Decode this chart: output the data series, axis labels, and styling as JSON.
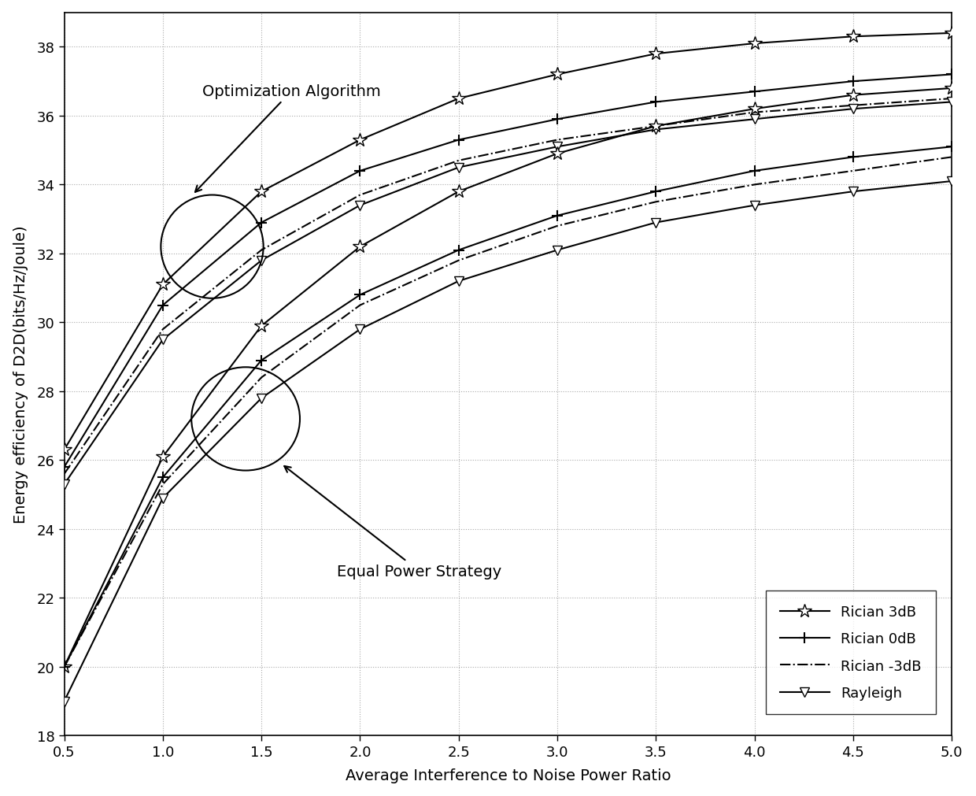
{
  "x": [
    0.5,
    1.0,
    1.5,
    2.0,
    2.5,
    3.0,
    3.5,
    4.0,
    4.5,
    5.0
  ],
  "rician_3dB_opt": [
    26.3,
    31.1,
    33.8,
    35.3,
    36.5,
    37.2,
    37.8,
    38.1,
    38.3,
    38.4
  ],
  "rician_0dB_opt": [
    25.8,
    30.5,
    32.9,
    34.4,
    35.3,
    35.9,
    36.4,
    36.7,
    37.0,
    37.2
  ],
  "rician_m3dB_opt": [
    25.6,
    29.8,
    32.1,
    33.7,
    34.7,
    35.3,
    35.7,
    36.1,
    36.3,
    36.5
  ],
  "rayleigh_opt": [
    25.3,
    29.5,
    31.8,
    33.4,
    34.5,
    35.1,
    35.6,
    35.9,
    36.2,
    36.4
  ],
  "rician_3dB_eq": [
    20.0,
    26.1,
    29.9,
    32.2,
    33.8,
    34.9,
    35.7,
    36.2,
    36.6,
    36.8
  ],
  "rician_0dB_eq": [
    20.0,
    25.5,
    28.9,
    30.8,
    32.1,
    33.1,
    33.8,
    34.4,
    34.8,
    35.1
  ],
  "rician_m3dB_eq": [
    20.0,
    25.3,
    28.4,
    30.5,
    31.8,
    32.8,
    33.5,
    34.0,
    34.4,
    34.8
  ],
  "rayleigh_eq": [
    19.0,
    24.9,
    27.8,
    29.8,
    31.2,
    32.1,
    32.9,
    33.4,
    33.8,
    34.1
  ],
  "xlabel": "Average Interference to Noise Power Ratio",
  "ylabel": "Energy efficiency of D2D(bits/Hz/Joule)",
  "xlim": [
    0.5,
    5.0
  ],
  "ylim": [
    18,
    39
  ],
  "xticks": [
    0.5,
    1.0,
    1.5,
    2.0,
    2.5,
    3.0,
    3.5,
    4.0,
    4.5,
    5.0
  ],
  "yticks": [
    18,
    20,
    22,
    24,
    26,
    28,
    30,
    32,
    34,
    36,
    38
  ],
  "legend_labels": [
    "Rician 3dB",
    "Rician 0dB",
    "Rician -3dB",
    "Rayleigh"
  ],
  "annotation_opt": "Optimization Algorithm",
  "annotation_eq": "Equal Power Strategy",
  "line_color": "#000000",
  "background_color": "#ffffff",
  "grid_color": "#aaaaaa"
}
